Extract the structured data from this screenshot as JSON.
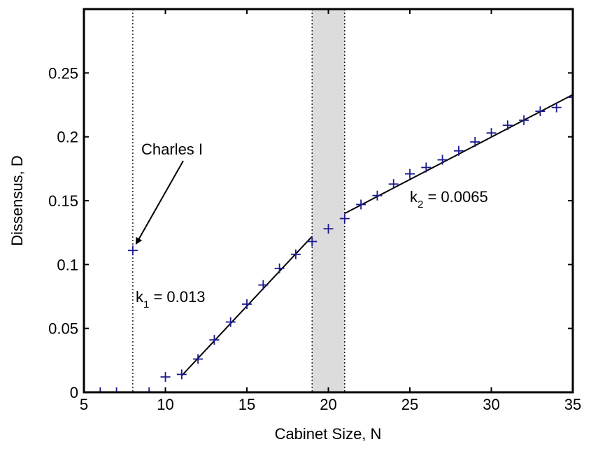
{
  "chart_data": {
    "type": "scatter",
    "xlabel": "Cabinet Size, N",
    "ylabel": "Dissensus, D",
    "xlim": [
      5,
      35
    ],
    "ylim": [
      0,
      0.3
    ],
    "x_ticks": [
      {
        "value": 5,
        "label": "5"
      },
      {
        "value": 10,
        "label": "10"
      },
      {
        "value": 15,
        "label": "15"
      },
      {
        "value": 20,
        "label": "20"
      },
      {
        "value": 25,
        "label": "25"
      },
      {
        "value": 30,
        "label": "30"
      },
      {
        "value": 35,
        "label": "35"
      }
    ],
    "y_ticks": [
      {
        "value": 0,
        "label": "0"
      },
      {
        "value": 0.05,
        "label": "0.05"
      },
      {
        "value": 0.1,
        "label": "0.1"
      },
      {
        "value": 0.15,
        "label": "0.15"
      },
      {
        "value": 0.2,
        "label": "0.2"
      },
      {
        "value": 0.25,
        "label": "0.25"
      }
    ],
    "grid": false,
    "marker_color": "#1a1a8c",
    "line_color": "#000000",
    "shade_color": "#dcdcdc",
    "points": [
      {
        "x": 5,
        "y": 0.0
      },
      {
        "x": 6,
        "y": 0.0
      },
      {
        "x": 7,
        "y": 0.0
      },
      {
        "x": 8,
        "y": 0.111
      },
      {
        "x": 9,
        "y": 0.0
      },
      {
        "x": 10,
        "y": 0.012
      },
      {
        "x": 11,
        "y": 0.014
      },
      {
        "x": 12,
        "y": 0.026
      },
      {
        "x": 13,
        "y": 0.041
      },
      {
        "x": 14,
        "y": 0.055
      },
      {
        "x": 15,
        "y": 0.069
      },
      {
        "x": 16,
        "y": 0.084
      },
      {
        "x": 17,
        "y": 0.097
      },
      {
        "x": 18,
        "y": 0.108
      },
      {
        "x": 19,
        "y": 0.118
      },
      {
        "x": 20,
        "y": 0.128
      },
      {
        "x": 21,
        "y": 0.136
      },
      {
        "x": 22,
        "y": 0.147
      },
      {
        "x": 23,
        "y": 0.154
      },
      {
        "x": 24,
        "y": 0.163
      },
      {
        "x": 25,
        "y": 0.171
      },
      {
        "x": 26,
        "y": 0.176
      },
      {
        "x": 27,
        "y": 0.182
      },
      {
        "x": 28,
        "y": 0.189
      },
      {
        "x": 29,
        "y": 0.196
      },
      {
        "x": 30,
        "y": 0.203
      },
      {
        "x": 31,
        "y": 0.209
      },
      {
        "x": 32,
        "y": 0.213
      },
      {
        "x": 33,
        "y": 0.22
      },
      {
        "x": 34,
        "y": 0.223
      },
      {
        "x": 35,
        "y": 0.231
      }
    ],
    "fit_lines": [
      {
        "x": [
          11,
          19
        ],
        "y": [
          0.013,
          0.122
        ]
      },
      {
        "x": [
          21,
          35
        ],
        "y": [
          0.14,
          0.233
        ]
      }
    ],
    "vertical_lines": [
      8,
      19,
      21
    ],
    "shaded_region": [
      19,
      21
    ],
    "annotations": {
      "charles": {
        "text": "Charles I",
        "point_x": 8,
        "point_y": 0.111
      },
      "k1": {
        "prefix": "k",
        "sub": "1",
        "suffix": " = 0.013"
      },
      "k2": {
        "prefix": "k",
        "sub": "2",
        "suffix": " = 0.0065"
      }
    }
  }
}
